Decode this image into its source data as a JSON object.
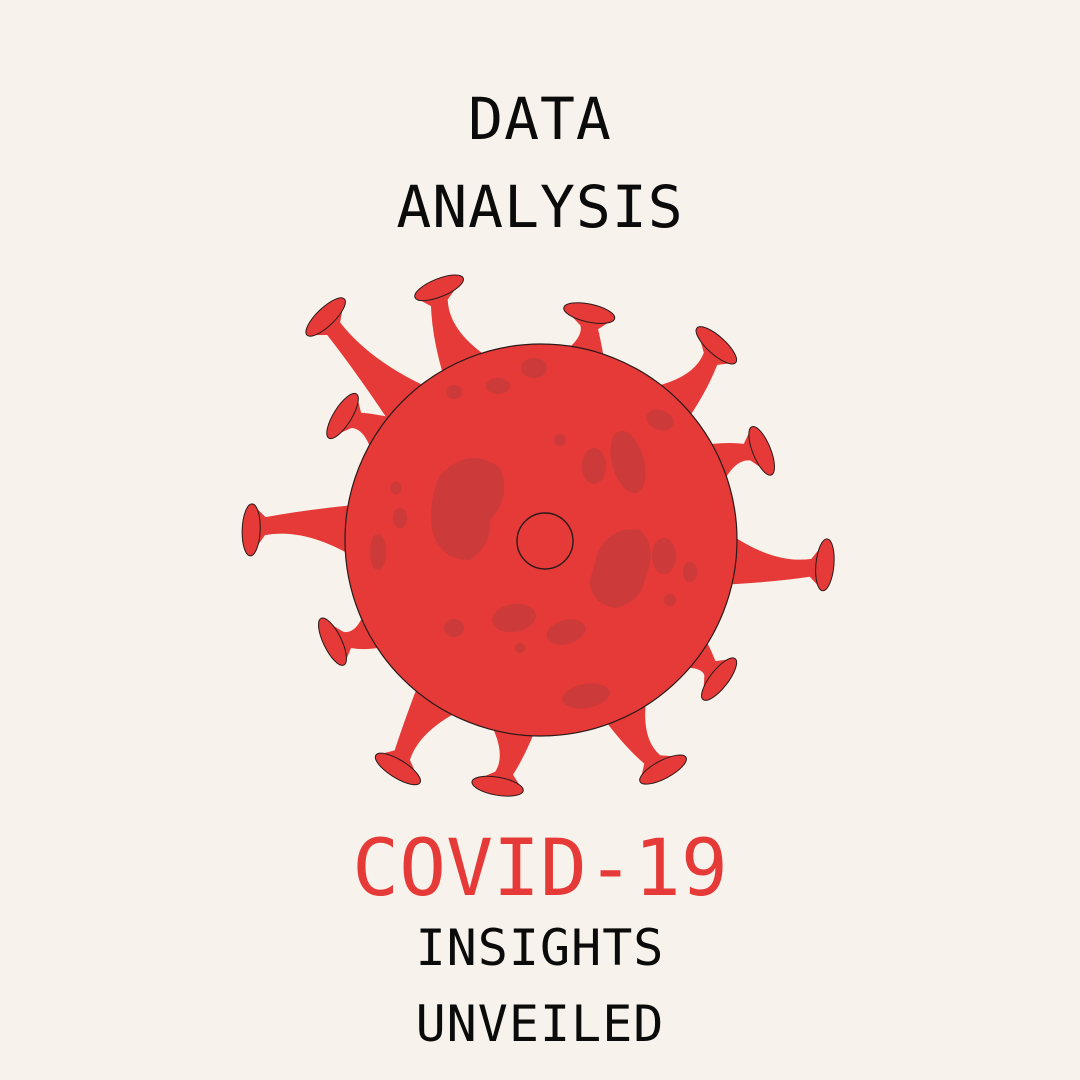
{
  "poster": {
    "title_line_1": "DATA",
    "title_line_2": "ANALYSIS",
    "headline": "COVID-19",
    "subtitle_line_1": "INSIGHTS",
    "subtitle_line_2": "UNVEILED"
  },
  "illustration": {
    "icon": "virus-icon",
    "colors": {
      "background": "#F7F3EC",
      "virus_red": "#E53A38",
      "virus_spot": "#CC3A3A",
      "text": "#0B0B0B"
    }
  }
}
